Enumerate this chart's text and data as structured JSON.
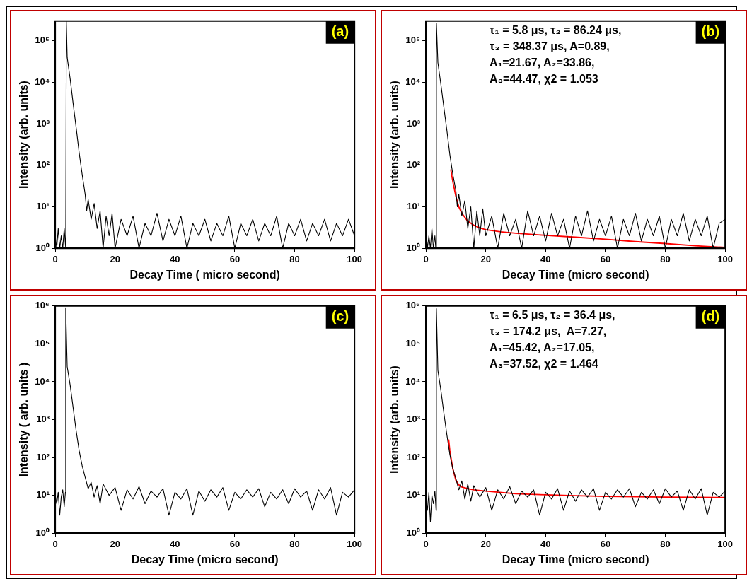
{
  "chart_data": [
    {
      "type": "line",
      "title": "(a)",
      "xlabel": "Decay Time ( micro second)",
      "ylabel": "Intensity (arb. units)",
      "log": "y",
      "marker": "none",
      "line_style": "solid",
      "xlim": [
        0,
        100
      ],
      "xticks": [
        0,
        20,
        40,
        60,
        80,
        100
      ],
      "ylim": [
        1,
        300000
      ],
      "yticks": [
        {
          "value": 1,
          "label": "10⁰"
        },
        {
          "value": 10,
          "label": "10¹"
        },
        {
          "value": 100,
          "label": "10²"
        },
        {
          "value": 1000,
          "label": "10³"
        },
        {
          "value": 10000,
          "label": "10⁴"
        },
        {
          "value": 100000,
          "label": "10⁵"
        }
      ],
      "series": [
        {
          "type": "line",
          "color": "#000000",
          "x": [
            0,
            0.5,
            1,
            1.5,
            2,
            2.5,
            3,
            3.5,
            3.7,
            4,
            5,
            6,
            7,
            8,
            9,
            10,
            10.5,
            11,
            12,
            13,
            14,
            15,
            16,
            17,
            18,
            19,
            20,
            22,
            24,
            26,
            28,
            30,
            32,
            34,
            36,
            38,
            40,
            42,
            44,
            46,
            48,
            50,
            52,
            54,
            56,
            58,
            60,
            62,
            64,
            66,
            68,
            70,
            72,
            74,
            76,
            78,
            80,
            82,
            84,
            86,
            88,
            90,
            92,
            94,
            96,
            98,
            100
          ],
          "values": [
            2,
            1,
            3,
            1,
            2,
            1,
            3,
            1,
            300000,
            40000,
            12000,
            3000,
            800,
            200,
            60,
            20,
            8,
            15,
            5,
            12,
            3,
            8,
            1,
            6,
            2,
            7,
            1,
            5,
            2,
            6,
            1,
            4,
            2,
            7,
            1.5,
            5,
            2,
            6,
            1,
            4,
            2,
            5,
            1.5,
            4,
            2,
            6,
            1,
            4,
            2,
            5,
            1.5,
            4,
            2,
            6,
            1,
            4,
            2,
            5,
            1.5,
            4,
            2,
            5,
            1.5,
            4,
            2,
            5,
            2
          ]
        }
      ]
    },
    {
      "type": "line",
      "title": "(b)",
      "xlabel": "Decay Time (micro second)",
      "ylabel": "Intensity (arb. units)",
      "log": "y",
      "marker": "none",
      "line_style": "solid",
      "annotations": [
        "τ₁ = 5.8 μs, τ₂ = 86.24 μs,",
        "τ₃ = 348.37 μs, A=0.89,",
        "A₁=21.67, A₂=33.86,",
        "A₃=44.47, χ2 = 1.053"
      ],
      "xlim": [
        0,
        100
      ],
      "xticks": [
        0,
        20,
        40,
        60,
        80,
        100
      ],
      "ylim": [
        1,
        300000
      ],
      "yticks": [
        {
          "value": 1,
          "label": "10⁰"
        },
        {
          "value": 10,
          "label": "10¹"
        },
        {
          "value": 100,
          "label": "10²"
        },
        {
          "value": 1000,
          "label": "10³"
        },
        {
          "value": 10000,
          "label": "10⁴"
        },
        {
          "value": 100000,
          "label": "10⁵"
        }
      ],
      "series": [
        {
          "type": "line",
          "color": "#000000",
          "x": [
            0,
            0.5,
            1,
            1.5,
            2,
            2.5,
            3,
            3.3,
            3.5,
            4,
            5,
            6,
            7,
            8,
            9,
            10,
            10.5,
            11,
            12,
            13,
            14,
            15,
            16,
            17,
            18,
            19,
            20,
            22,
            24,
            26,
            28,
            30,
            32,
            34,
            36,
            38,
            40,
            42,
            44,
            46,
            48,
            50,
            52,
            54,
            56,
            58,
            60,
            62,
            64,
            66,
            68,
            70,
            72,
            74,
            76,
            78,
            80,
            82,
            84,
            86,
            88,
            90,
            92,
            94,
            96,
            98,
            100
          ],
          "values": [
            3,
            1,
            2,
            1,
            3,
            1,
            2,
            1,
            270000,
            30000,
            9000,
            2500,
            700,
            180,
            60,
            25,
            10,
            20,
            6,
            14,
            3,
            10,
            1,
            8,
            2,
            9,
            2,
            6,
            1,
            7,
            2,
            5,
            1,
            8,
            2,
            6,
            1.5,
            7,
            2,
            5,
            1,
            6,
            2,
            8,
            1.5,
            5,
            2,
            6,
            1,
            5,
            2,
            7,
            1.5,
            5,
            2,
            6,
            1,
            5,
            2,
            7,
            1.5,
            5,
            2,
            6,
            1,
            4,
            5
          ]
        },
        {
          "type": "line",
          "color": "#ff0000",
          "x": [
            8.3,
            9,
            10,
            11,
            12,
            14,
            16,
            18,
            20,
            25,
            30,
            40,
            50,
            60,
            70,
            80,
            90,
            100
          ],
          "values": [
            80,
            40,
            18,
            10,
            7,
            4.5,
            3.6,
            3.1,
            2.8,
            2.5,
            2.3,
            2.05,
            1.85,
            1.65,
            1.45,
            1.3,
            1.15,
            1.05
          ]
        }
      ]
    },
    {
      "type": "line",
      "title": "(c)",
      "xlabel": "Decay Time (micro second)",
      "ylabel": "Intensity ( arb. units )",
      "log": "y",
      "marker": "none",
      "line_style": "solid",
      "xlim": [
        0,
        100
      ],
      "xticks": [
        0,
        20,
        40,
        60,
        80,
        100
      ],
      "ylim": [
        1,
        1000000
      ],
      "yticks": [
        {
          "value": 1,
          "label": "10⁰"
        },
        {
          "value": 10,
          "label": "10¹"
        },
        {
          "value": 100,
          "label": "10²"
        },
        {
          "value": 1000,
          "label": "10³"
        },
        {
          "value": 10000,
          "label": "10⁴"
        },
        {
          "value": 100000,
          "label": "10⁵"
        },
        {
          "value": 1000000,
          "label": "10⁶"
        }
      ],
      "series": [
        {
          "type": "line",
          "color": "#000000",
          "x": [
            0,
            0.5,
            1,
            1.5,
            2,
            2.5,
            3,
            3.4,
            3.5,
            4,
            5,
            6,
            7,
            8,
            9,
            10,
            11,
            12,
            13,
            14,
            15,
            16,
            18,
            20,
            22,
            24,
            26,
            28,
            30,
            32,
            34,
            36,
            38,
            40,
            42,
            44,
            46,
            48,
            50,
            52,
            54,
            56,
            58,
            60,
            62,
            64,
            66,
            68,
            70,
            72,
            74,
            76,
            78,
            80,
            82,
            84,
            86,
            88,
            90,
            92,
            94,
            96,
            98,
            100
          ],
          "values": [
            10,
            6,
            12,
            3,
            9,
            14,
            5,
            12,
            900000,
            25000,
            8000,
            2000,
            500,
            150,
            60,
            30,
            15,
            22,
            9,
            18,
            6,
            20,
            10,
            16,
            4,
            14,
            8,
            17,
            6,
            13,
            9,
            15,
            3,
            12,
            8,
            15,
            3,
            13,
            7,
            14,
            9,
            16,
            4,
            12,
            8,
            14,
            9,
            15,
            5,
            12,
            8,
            14,
            6,
            15,
            9,
            13,
            4,
            14,
            8,
            16,
            3,
            12,
            9,
            14
          ]
        }
      ]
    },
    {
      "type": "line",
      "title": "(d)",
      "xlabel": "Decay Time (micro second)",
      "ylabel": "Intensity (arb. units)",
      "log": "y",
      "marker": "none",
      "line_style": "solid",
      "annotations": [
        "τ₁ = 6.5 μs, τ₂ = 36.4 μs,",
        "τ₃ = 174.2 μs,  A=7.27,",
        "A₁=45.42, A₂=17.05,",
        "A₃=37.52, χ2 = 1.464"
      ],
      "xlim": [
        0,
        100
      ],
      "xticks": [
        0,
        20,
        40,
        60,
        80,
        100
      ],
      "ylim": [
        1,
        1000000
      ],
      "yticks": [
        {
          "value": 1,
          "label": "10⁰"
        },
        {
          "value": 10,
          "label": "10¹"
        },
        {
          "value": 100,
          "label": "10²"
        },
        {
          "value": 1000,
          "label": "10³"
        },
        {
          "value": 10000,
          "label": "10⁴"
        },
        {
          "value": 100000,
          "label": "10⁵"
        },
        {
          "value": 1000000,
          "label": "10⁶"
        }
      ],
      "series": [
        {
          "type": "line",
          "color": "#000000",
          "x": [
            0,
            0.5,
            1,
            1.5,
            2,
            2.5,
            3,
            3.4,
            3.5,
            4,
            5,
            6,
            7,
            8,
            9,
            10,
            11,
            12,
            13,
            14,
            15,
            16,
            18,
            20,
            22,
            24,
            26,
            28,
            30,
            32,
            34,
            36,
            38,
            40,
            42,
            44,
            46,
            48,
            50,
            52,
            54,
            56,
            58,
            60,
            62,
            64,
            66,
            68,
            70,
            72,
            74,
            76,
            78,
            80,
            82,
            84,
            86,
            88,
            90,
            92,
            94,
            96,
            98,
            100
          ],
          "values": [
            9,
            4,
            12,
            2,
            10,
            6,
            13,
            4,
            850000,
            20000,
            6000,
            1500,
            400,
            120,
            50,
            28,
            14,
            24,
            8,
            20,
            7,
            18,
            9,
            16,
            4,
            14,
            8,
            17,
            6,
            13,
            9,
            14,
            3,
            12,
            8,
            15,
            4,
            13,
            7,
            14,
            9,
            15,
            4,
            12,
            8,
            14,
            9,
            15,
            5,
            12,
            8,
            14,
            6,
            15,
            9,
            13,
            4,
            14,
            8,
            15,
            3,
            12,
            9,
            13
          ]
        },
        {
          "type": "line",
          "color": "#ff0000",
          "x": [
            7.6,
            8,
            9,
            10,
            11,
            12,
            14,
            16,
            20,
            30,
            40,
            50,
            60,
            80,
            100
          ],
          "values": [
            300,
            150,
            50,
            25,
            19,
            16.5,
            15,
            14,
            13,
            11,
            10.3,
            9.8,
            9.4,
            9,
            8.8
          ]
        }
      ]
    }
  ]
}
